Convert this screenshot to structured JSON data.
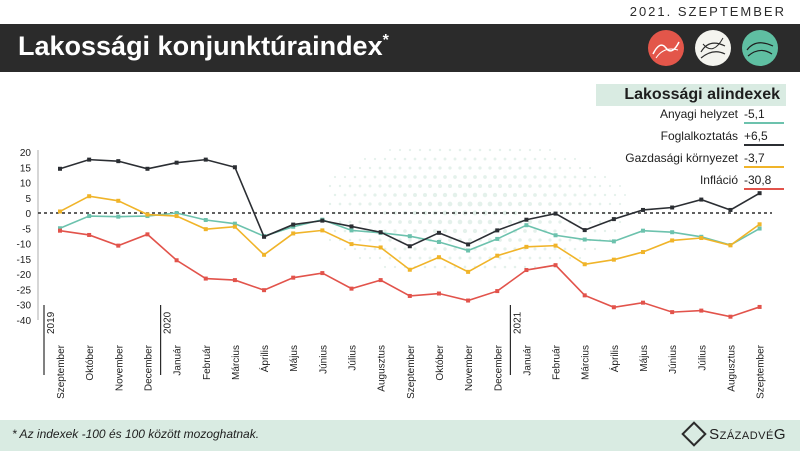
{
  "header": {
    "date": "2021. SZEPTEMBER",
    "title": "Lakossági konjunktúraindex",
    "title_mark": "*"
  },
  "badges": [
    {
      "name": "red-badge-icon",
      "color": "#e3564a"
    },
    {
      "name": "white-badge-icon",
      "color": "#f4f4ef"
    },
    {
      "name": "teal-badge-icon",
      "color": "#5fbfa2"
    }
  ],
  "legend": {
    "title": "Lakossági alindexek",
    "items": [
      {
        "name": "Anyagi helyzet",
        "value": "-5,1",
        "color": "#6cc2ad"
      },
      {
        "name": "Foglalkoztatás",
        "value": "+6,5",
        "color": "#2b2e33"
      },
      {
        "name": "Gazdasági környezet",
        "value": "-3,7",
        "color": "#f0b429"
      },
      {
        "name": "Infláció",
        "value": "-30,8",
        "color": "#e2534b"
      }
    ]
  },
  "footer": {
    "note": "* Az indexek -100 és 100 között mozoghatnak.",
    "logo": "SzázadvéG"
  },
  "chart_data": {
    "type": "line",
    "categories": [
      "Szeptember",
      "Október",
      "November",
      "December",
      "Január",
      "Február",
      "Március",
      "Április",
      "Május",
      "Június",
      "Július",
      "Augusztus",
      "Szeptember",
      "Október",
      "November",
      "December",
      "Január",
      "Február",
      "Március",
      "Április",
      "Május",
      "Június",
      "Július",
      "Augusztus",
      "Szeptember"
    ],
    "year_labels": [
      {
        "label": "2019",
        "index": 0
      },
      {
        "label": "2020",
        "index": 4
      },
      {
        "label": "2021",
        "index": 16
      }
    ],
    "yticks": [
      20,
      15,
      10,
      5,
      0,
      -5,
      -10,
      -15,
      -20,
      -25,
      -30,
      -40
    ],
    "series": [
      {
        "name": "Anyagi helyzet",
        "color": "#6cc2ad",
        "values": [
          -5,
          -1,
          -1.2,
          -1,
          0,
          -2.3,
          -3.5,
          -7.6,
          -4.5,
          -2.2,
          -5.7,
          -6.5,
          -7.6,
          -9.5,
          -12.3,
          -8.5,
          -4,
          -7.3,
          -8.7,
          -9.3,
          -5.8,
          -6.3,
          -7.8,
          -10.5,
          -5.1
        ]
      },
      {
        "name": "Foglalkoztatás",
        "color": "#2b2e33",
        "values": [
          14.5,
          17.5,
          17,
          14.5,
          16.5,
          17.5,
          15,
          -7.8,
          -3.8,
          -2.5,
          -4.4,
          -6.3,
          -10.9,
          -6.5,
          -10.3,
          -5.7,
          -2.2,
          -0.2,
          -5.6,
          -2,
          1,
          1.8,
          4.4,
          1,
          6.5
        ]
      },
      {
        "name": "Gazdasági környezet",
        "color": "#f0b429",
        "values": [
          0.5,
          5.5,
          4,
          -0.5,
          -1,
          -5.3,
          -4.5,
          -13.7,
          -6.7,
          -5.7,
          -10.2,
          -11.3,
          -18.6,
          -14.5,
          -19.3,
          -14,
          -11.1,
          -10.7,
          -16.8,
          -15.3,
          -12.8,
          -9,
          -8.2,
          -10.6,
          -3.7
        ]
      },
      {
        "name": "Infláció",
        "color": "#e2534b",
        "values": [
          -5.8,
          -7.2,
          -10.7,
          -7,
          -15.5,
          -21.5,
          -22,
          -25.3,
          -21.2,
          -19.7,
          -24.8,
          -22,
          -27.2,
          -26.4,
          -28.7,
          -25.6,
          -18.7,
          -17.1,
          -27,
          -30.9,
          -29.4,
          -32.5,
          -32,
          -34,
          -30.8
        ]
      }
    ]
  }
}
